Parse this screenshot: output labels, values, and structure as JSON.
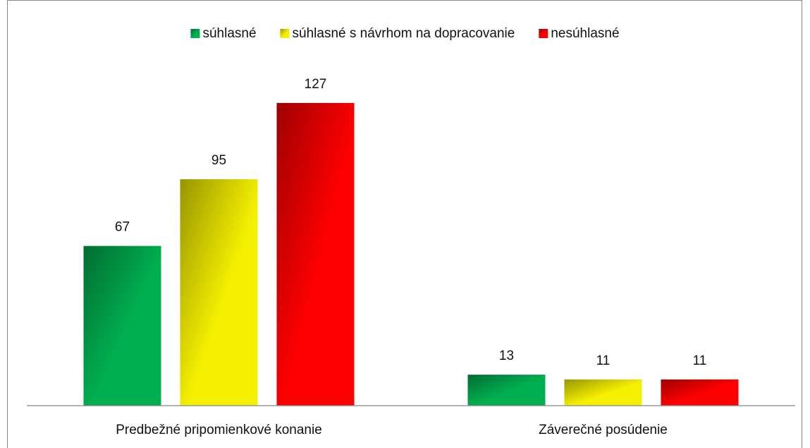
{
  "chart_data": {
    "type": "bar",
    "categories": [
      "Predbežné pripomienkové konanie",
      "Záverečné posúdenie"
    ],
    "series": [
      {
        "name": "súhlasné",
        "color": "#00b050",
        "values": [
          67,
          13
        ]
      },
      {
        "name": "súhlasné s návrhom na dopracovanie",
        "color": "#f5f000",
        "values": [
          95,
          11
        ]
      },
      {
        "name": "nesúhlasné",
        "color": "#ff0000",
        "values": [
          127,
          11
        ]
      }
    ],
    "ylim": [
      0,
      140
    ],
    "legend": "top"
  }
}
